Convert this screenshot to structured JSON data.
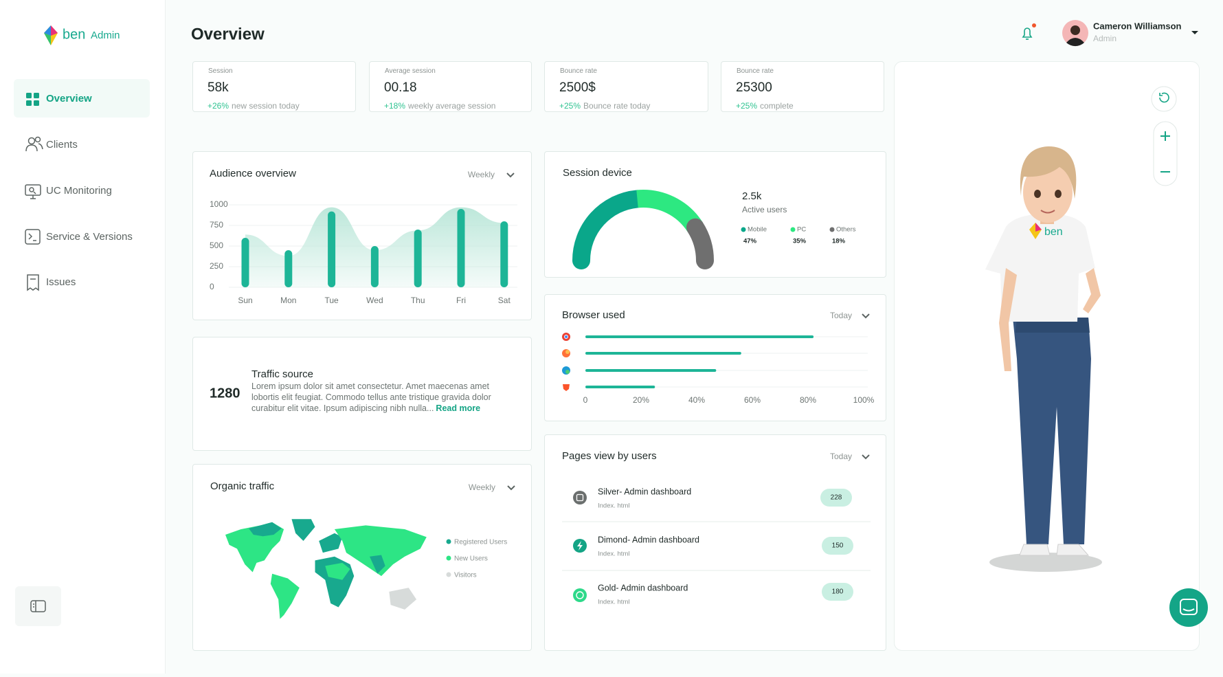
{
  "brand": {
    "name": "ben",
    "suffix": "Admin"
  },
  "nav": [
    "Overview",
    "Clients",
    "UC Monitoring",
    "Service & Versions",
    "Issues"
  ],
  "header": {
    "title": "Overview",
    "user": {
      "name": "Cameron Williamson",
      "role": "Admin"
    }
  },
  "stats": [
    {
      "label": "Session",
      "value": "58k",
      "change": "+26%",
      "note": "new session today"
    },
    {
      "label": "Average session",
      "value": "00.18",
      "change": "+18%",
      "note": "weekly average session"
    },
    {
      "label": "Bounce rate",
      "value": "2500$",
      "change": "+25%",
      "note": "Bounce rate today"
    },
    {
      "label": "Bounce rate",
      "value": "25300",
      "change": "+25%",
      "note": "complete"
    }
  ],
  "audience": {
    "title": "Audience overview",
    "period": "Weekly",
    "chart": {
      "type": "bar",
      "categories": [
        "Sun",
        "Mon",
        "Tue",
        "Wed",
        "Thu",
        "Fri",
        "Sat"
      ],
      "series": [
        {
          "type": "area",
          "color": "#b9e6d8",
          "values": [
            640,
            380,
            970,
            450,
            690,
            970,
            780
          ]
        },
        {
          "type": "bar",
          "color": "#1db597",
          "values": [
            600,
            450,
            920,
            500,
            700,
            950,
            800
          ]
        }
      ],
      "ylim": [
        0,
        1000
      ],
      "yticks": [
        0,
        250,
        500,
        750,
        1000
      ],
      "grid": true
    }
  },
  "traffic": {
    "value": 1280,
    "title": "Traffic source",
    "text": "Lorem ipsum dolor sit amet consectetur. Amet maecenas amet lobortis elit feugiat. Commodo tellus ante tristique gravida dolor curabitur elit vitae. Ipsum adipiscing nibh nulla...",
    "link": "Read more"
  },
  "organic": {
    "title": "Organic traffic",
    "period": "Weekly",
    "legend": [
      {
        "name": "Registered Users",
        "color": "#18a98e"
      },
      {
        "name": "New Users",
        "color": "#2de585"
      },
      {
        "name": "Visitors",
        "color": "#d7dbda"
      }
    ]
  },
  "device": {
    "title": "Session device",
    "value": "2.5k",
    "label": "Active users",
    "chart": {
      "type": "gauge",
      "categories": [
        "Mobile",
        "PC",
        "Others"
      ],
      "values": [
        47,
        35,
        18
      ],
      "value_labels": [
        "47%",
        "35%",
        "18%"
      ],
      "colors": [
        "#0aa78a",
        "#2de881",
        "#6f6f6f"
      ]
    }
  },
  "browser": {
    "title": "Browser used",
    "period": "Today",
    "chart": {
      "type": "hbar",
      "values": [
        82,
        56,
        47,
        25
      ],
      "color": "#1db597",
      "xlim": [
        0,
        100
      ],
      "xticks": [
        0,
        {
          "value": 20,
          "label": "20%"
        },
        {
          "value": 40,
          "label": "40%"
        },
        {
          "value": 60,
          "label": "60%"
        },
        {
          "value": 80,
          "label": "80%"
        },
        {
          "value": 100,
          "label": "100%"
        }
      ]
    }
  },
  "pages": {
    "title": "Pages view by users",
    "period": "Today",
    "rows": [
      {
        "title": "Silver- Admin dashboard",
        "sub": "Index. html",
        "count": 228
      },
      {
        "title": "Dimond- Admin dashboard",
        "sub": "Index. html",
        "count": 150
      },
      {
        "title": "Gold- Admin dashboard",
        "sub": "Index. html",
        "count": 180
      }
    ]
  }
}
